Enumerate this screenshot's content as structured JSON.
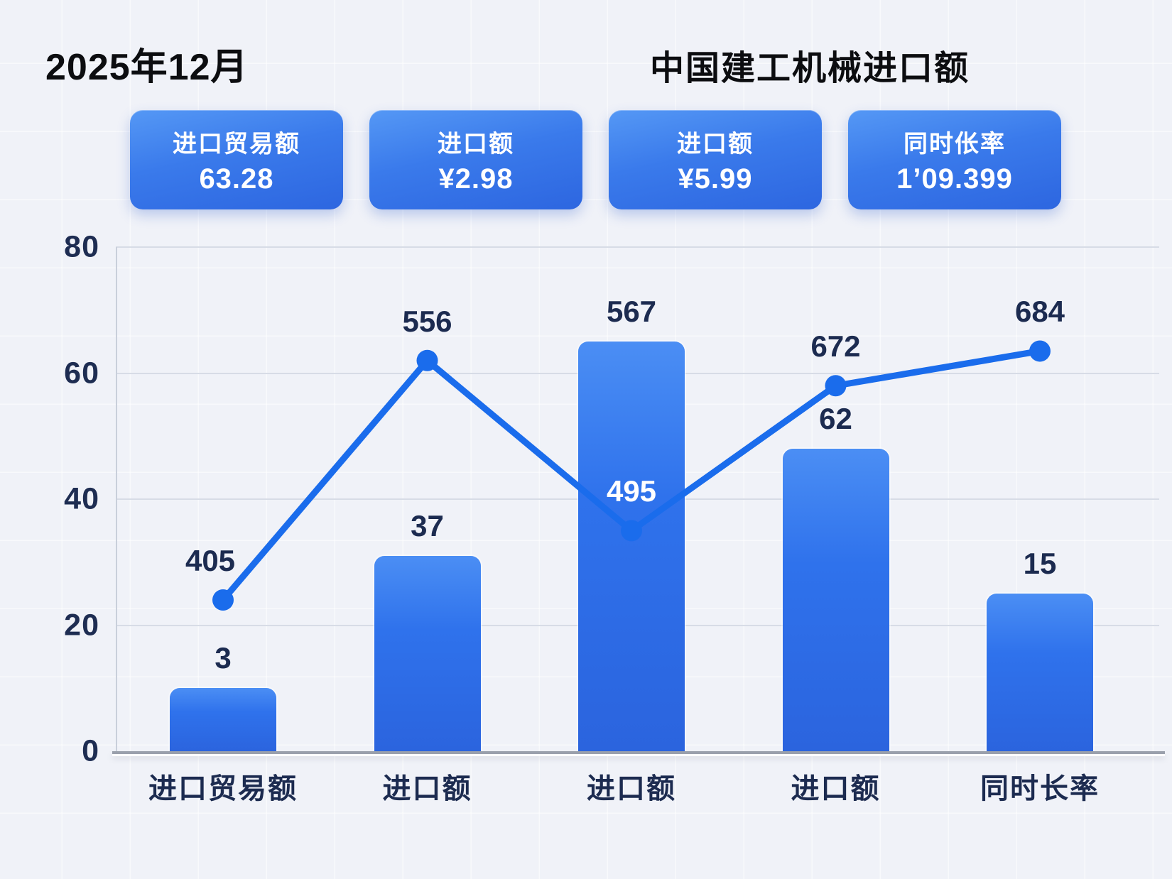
{
  "page": {
    "title_left": "2025年12月",
    "title_main": "中国建工机械进口额"
  },
  "stat_cards": [
    {
      "label": "进口贸易额",
      "value": "63.28"
    },
    {
      "label": "进口额",
      "value": "¥2.98"
    },
    {
      "label": "进口额",
      "value": "¥5.99"
    },
    {
      "label": "同时伥率",
      "value": "1’09.399"
    }
  ],
  "colors": {
    "background": "#f0f2f8",
    "accent_line_blue": "#1a6cec",
    "bar_gradient_top": "#4b8ef4",
    "bar_gradient_bottom": "#2b64de",
    "card_gradient_top": "#5598f5",
    "card_gradient_bottom": "#2d66e0",
    "label_navy": "#1c2b50",
    "title_black": "#0c0d10",
    "gridline": "#d7dce6",
    "axis": "#9aa0ac",
    "white": "#ffffff"
  },
  "chart_data": {
    "type": "bar",
    "subtype": "bar+line combo",
    "title": "中国建工机械进口额",
    "xlabel": "",
    "ylabel": "",
    "categories": [
      "进口贸易额",
      "进口额",
      "进口额",
      "进口额",
      "同时长率"
    ],
    "ylim": [
      0,
      80
    ],
    "yticks": [
      0,
      20,
      40,
      60,
      80
    ],
    "grid": true,
    "legend": "none",
    "series": [
      {
        "name": "bars",
        "type": "bar",
        "plotted_values": [
          10,
          31,
          65,
          48,
          25
        ],
        "labels": [
          "3",
          "37",
          "567",
          "62",
          "15"
        ]
      },
      {
        "name": "line",
        "type": "line",
        "plotted_values": [
          24,
          62,
          35,
          58,
          63.5
        ],
        "labels": [
          "405",
          "556",
          "495",
          "672",
          "684"
        ],
        "label_on_bar_index": 2
      }
    ]
  }
}
